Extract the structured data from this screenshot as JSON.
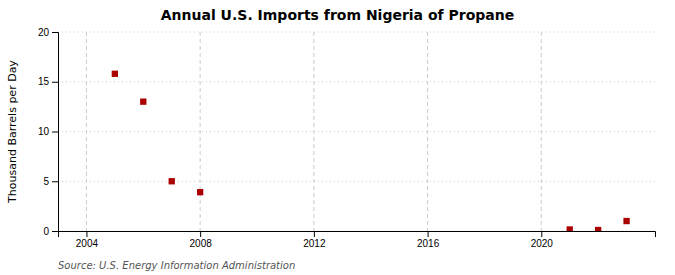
{
  "chart_data": {
    "type": "scatter",
    "title": "Annual U.S. Imports from Nigeria of Propane",
    "ylabel": "Thousand Barrels per Day",
    "source": "Source: U.S. Energy Information Administration",
    "x": [
      2005,
      2006,
      2007,
      2008,
      2021,
      2022,
      2023
    ],
    "values": [
      15.8,
      13.0,
      5.0,
      3.9,
      0.15,
      0.1,
      1.0
    ],
    "color": "#aa0000",
    "marker": "square",
    "xlim": [
      2003,
      2024
    ],
    "xticks": [
      2004,
      2008,
      2012,
      2016,
      2020
    ],
    "ylim": [
      0,
      20
    ],
    "yticks": [
      0,
      5,
      10,
      15,
      20
    ],
    "grid": true
  }
}
